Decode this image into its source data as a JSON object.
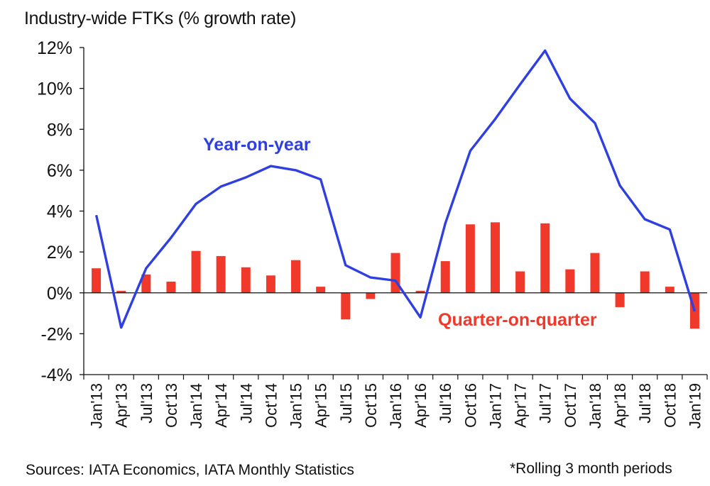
{
  "chart_data": {
    "type": "bar+line",
    "title": "Industry-wide FTKs (% growth rate)",
    "categories": [
      "Jan'13",
      "Apr'13",
      "Jul'13",
      "Oct'13",
      "Jan'14",
      "Apr'14",
      "Jul'14",
      "Oct'14",
      "Jan'15",
      "Apr'15",
      "Jul'15",
      "Oct'15",
      "Jan'16",
      "Apr'16",
      "Jul'16",
      "Oct'16",
      "Jan'17",
      "Apr'17",
      "Jul'17",
      "Oct'17",
      "Jan'18",
      "Apr'18",
      "Jul'18",
      "Oct'18",
      "Jan'19"
    ],
    "yticks": [
      "12%",
      "10%",
      "8%",
      "6%",
      "4%",
      "2%",
      "0%",
      "-2%",
      "-4%"
    ],
    "ylim": [
      -4,
      12
    ],
    "series": [
      {
        "name": "Quarter-on-quarter",
        "type": "bar",
        "color": "#f0392b",
        "values": [
          1.2,
          0.1,
          0.9,
          0.55,
          2.05,
          1.8,
          1.25,
          0.85,
          1.6,
          0.3,
          -1.3,
          -0.3,
          1.95,
          0.1,
          1.55,
          3.35,
          3.45,
          1.05,
          3.4,
          1.15,
          1.95,
          -0.7,
          1.05,
          0.3,
          -1.75
        ]
      },
      {
        "name": "Year-on-year",
        "type": "line",
        "color": "#2f3fe0",
        "x": [
          "Jan'13",
          "Apr'13",
          "Jul'13",
          "Oct'13",
          "Jan'14",
          "Apr'14",
          "Jul'14",
          "Oct'14",
          "Jan'15",
          "Apr'15",
          "Jul'15",
          "Oct'15",
          "Jan'16",
          "Apr'16",
          "Jul'16",
          "Oct'16",
          "Jan'17",
          "Apr'17",
          "Jul'17",
          "Oct'17",
          "Jan'18",
          "Apr'18",
          "Jul'18",
          "Oct'18",
          "Jan'19"
        ],
        "values": [
          3.8,
          -1.7,
          1.2,
          2.7,
          4.35,
          5.2,
          5.65,
          6.2,
          6.0,
          5.55,
          1.35,
          0.75,
          0.6,
          -1.2,
          3.4,
          6.95,
          8.5,
          10.2,
          11.85,
          9.5,
          8.3,
          5.25,
          3.6,
          3.1,
          -0.9
        ]
      }
    ],
    "source": "Sources: IATA Economics, IATA Monthly Statistics",
    "note": "*Rolling 3 month periods"
  }
}
